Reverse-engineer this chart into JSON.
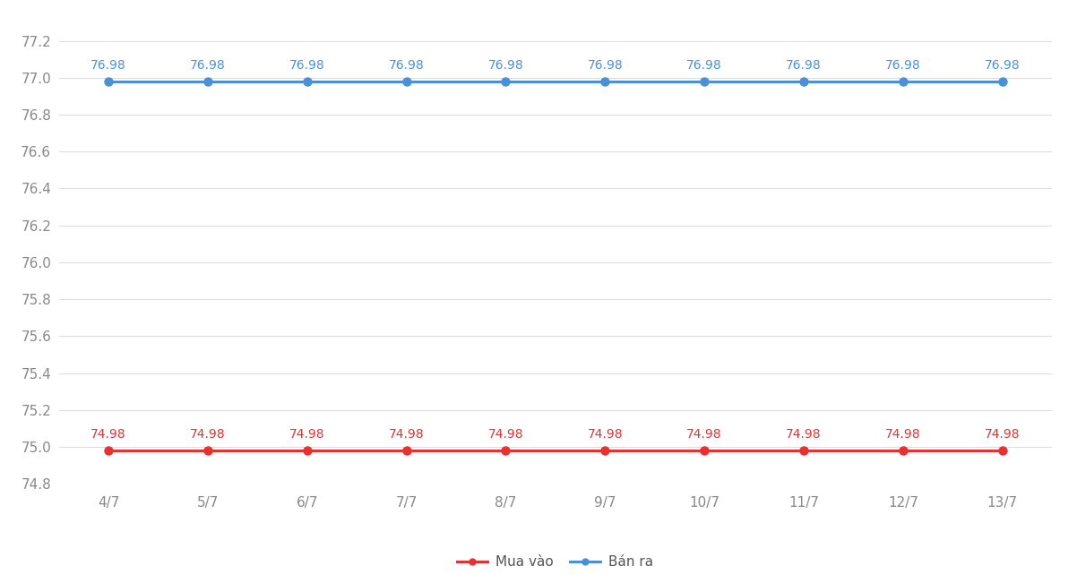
{
  "x_labels": [
    "4/7",
    "5/7",
    "6/7",
    "7/7",
    "8/7",
    "9/7",
    "10/7",
    "11/7",
    "12/7",
    "13/7"
  ],
  "buy_values": [
    74.98,
    74.98,
    74.98,
    74.98,
    74.98,
    74.98,
    74.98,
    74.98,
    74.98,
    74.98
  ],
  "sell_values": [
    76.98,
    76.98,
    76.98,
    76.98,
    76.98,
    76.98,
    76.98,
    76.98,
    76.98,
    76.98
  ],
  "buy_color": "#e83030",
  "sell_color": "#4a90d9",
  "buy_label": "Mua vào",
  "sell_label": "Bán ra",
  "ylim_min": 74.8,
  "ylim_max": 77.2,
  "ytick_step": 0.2,
  "background_color": "#ffffff",
  "grid_color": "#dddddd",
  "annotation_fontsize": 10,
  "tick_fontsize": 11,
  "legend_fontsize": 11,
  "line_width": 2.2,
  "marker_size": 6.5
}
